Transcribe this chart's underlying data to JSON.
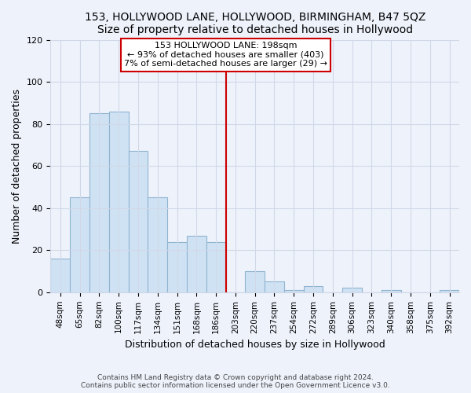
{
  "title": "153, HOLLYWOOD LANE, HOLLYWOOD, BIRMINGHAM, B47 5QZ",
  "subtitle": "Size of property relative to detached houses in Hollywood",
  "xlabel": "Distribution of detached houses by size in Hollywood",
  "ylabel": "Number of detached properties",
  "bin_labels": [
    "48sqm",
    "65sqm",
    "82sqm",
    "100sqm",
    "117sqm",
    "134sqm",
    "151sqm",
    "168sqm",
    "186sqm",
    "203sqm",
    "220sqm",
    "237sqm",
    "254sqm",
    "272sqm",
    "289sqm",
    "306sqm",
    "323sqm",
    "340sqm",
    "358sqm",
    "375sqm",
    "392sqm"
  ],
  "bar_heights": [
    16,
    45,
    85,
    86,
    67,
    45,
    24,
    27,
    24,
    0,
    10,
    5,
    1,
    3,
    0,
    2,
    0,
    1,
    0,
    0,
    1
  ],
  "bar_color": "#cfe2f3",
  "bar_edge_color": "#90b4d0",
  "ylim": [
    0,
    120
  ],
  "yticks": [
    0,
    20,
    40,
    60,
    80,
    100,
    120
  ],
  "property_line_bin_idx": 9,
  "property_line_label": "153 HOLLYWOOD LANE: 198sqm",
  "annotation_line1": "← 93% of detached houses are smaller (403)",
  "annotation_line2": "7% of semi-detached houses are larger (29) →",
  "annotation_box_color": "#ffffff",
  "annotation_border_color": "#cc0000",
  "line_color": "#cc0000",
  "footer1": "Contains HM Land Registry data © Crown copyright and database right 2024.",
  "footer2": "Contains public sector information licensed under the Open Government Licence v3.0.",
  "background_color": "#eef2fb",
  "grid_color": "#d0d8e8",
  "title_fontsize": 10,
  "subtitle_fontsize": 9,
  "axis_label_fontsize": 9,
  "tick_fontsize": 7.5,
  "annotation_fontsize": 8
}
